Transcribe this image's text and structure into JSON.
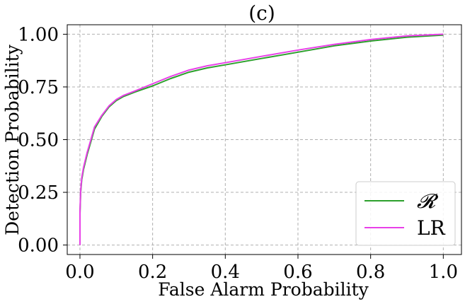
{
  "chart_data": {
    "type": "line",
    "title": "(c)",
    "xlabel": "False Alarm Probability",
    "ylabel": "Detection Probability",
    "xlim": [
      -0.035,
      1.05
    ],
    "ylim": [
      -0.045,
      1.045
    ],
    "grid": true,
    "legend_position": "lower-right",
    "x_ticks": [
      0.0,
      0.2,
      0.4,
      0.6,
      0.8,
      1.0
    ],
    "x_tick_labels": [
      "0.0",
      "0.2",
      "0.4",
      "0.6",
      "0.8",
      "1.0"
    ],
    "y_ticks": [
      0.0,
      0.25,
      0.5,
      0.75,
      1.0
    ],
    "y_tick_labels": [
      "0.00",
      "0.25",
      "0.50",
      "0.75",
      "1.00"
    ],
    "series": [
      {
        "name": "𝓡",
        "color": "#2ca02c",
        "x": [
          0.0,
          0.0,
          0.002,
          0.005,
          0.01,
          0.02,
          0.03,
          0.04,
          0.06,
          0.08,
          0.1,
          0.12,
          0.15,
          0.2,
          0.25,
          0.3,
          0.35,
          0.4,
          0.5,
          0.6,
          0.7,
          0.8,
          0.9,
          1.0
        ],
        "y": [
          0.0,
          0.15,
          0.25,
          0.31,
          0.36,
          0.43,
          0.49,
          0.55,
          0.61,
          0.655,
          0.685,
          0.705,
          0.725,
          0.755,
          0.79,
          0.82,
          0.84,
          0.855,
          0.885,
          0.915,
          0.945,
          0.968,
          0.986,
          0.996
        ]
      },
      {
        "name": "LR",
        "color": "#e840e8",
        "x": [
          0.0,
          0.0,
          0.002,
          0.005,
          0.01,
          0.02,
          0.03,
          0.04,
          0.06,
          0.08,
          0.1,
          0.12,
          0.15,
          0.2,
          0.25,
          0.3,
          0.35,
          0.4,
          0.5,
          0.6,
          0.7,
          0.8,
          0.9,
          1.0
        ],
        "y": [
          0.0,
          0.16,
          0.26,
          0.32,
          0.37,
          0.44,
          0.5,
          0.56,
          0.615,
          0.66,
          0.69,
          0.71,
          0.73,
          0.765,
          0.8,
          0.83,
          0.85,
          0.865,
          0.895,
          0.925,
          0.952,
          0.975,
          0.992,
          1.0
        ]
      }
    ]
  }
}
